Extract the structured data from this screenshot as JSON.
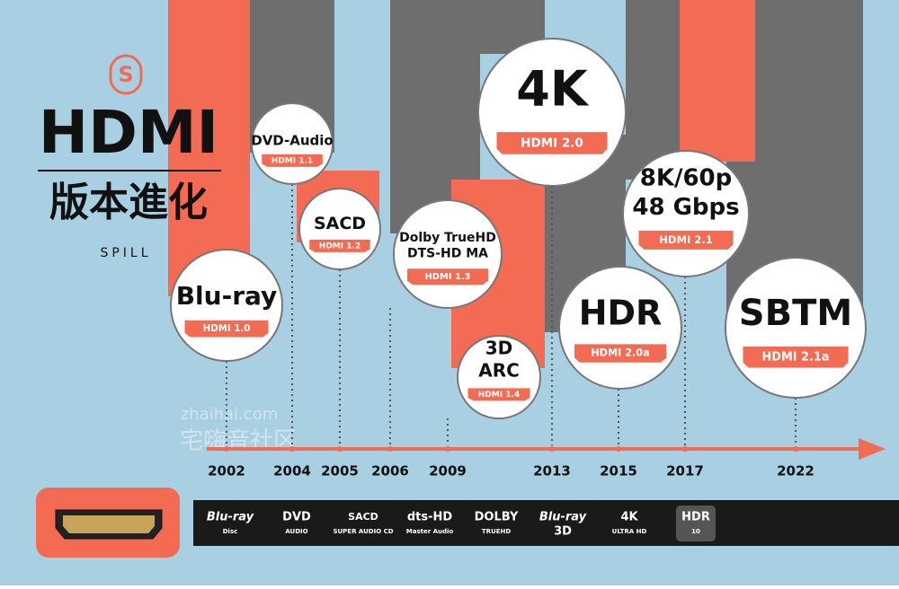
{
  "header": {
    "logo": "S",
    "title": "HDMI",
    "subtitle": "版本進化",
    "brand": "SPILL"
  },
  "watermark": {
    "site": "zhaihai.com",
    "name": "宅嗨音社区"
  },
  "milestones": [
    {
      "lines": [
        "Blu-ray"
      ],
      "version": "HDMI 1.0",
      "year": "2002"
    },
    {
      "lines": [
        "DVD-Audio"
      ],
      "version": "HDMI 1.1",
      "year": "2004"
    },
    {
      "lines": [
        "SACD"
      ],
      "version": "HDMI 1.2",
      "year": "2005"
    },
    {
      "lines": [
        "Dolby TrueHD",
        "DTS-HD MA"
      ],
      "version": "HDMI 1.3",
      "year": "2006"
    },
    {
      "lines": [
        "3D",
        "ARC"
      ],
      "version": "HDMI 1.4",
      "year": "2009"
    },
    {
      "lines": [
        "4K"
      ],
      "version": "HDMI 2.0",
      "year": "2013"
    },
    {
      "lines": [
        "HDR"
      ],
      "version": "HDMI 2.0a",
      "year": "2015"
    },
    {
      "lines": [
        "8K/60p",
        "48 Gbps"
      ],
      "version": "HDMI 2.1",
      "year": "2017"
    },
    {
      "lines": [
        "SBTM"
      ],
      "version": "HDMI 2.1a",
      "year": "2022"
    }
  ],
  "formats": [
    {
      "main": "Blu-ray",
      "sub": "Disc"
    },
    {
      "main": "DVD",
      "sub": "AUDIO"
    },
    {
      "main": "SACD",
      "sub": "SUPER AUDIO CD"
    },
    {
      "main": "dts-HD",
      "sub": "Master Audio"
    },
    {
      "main": "DOLBY",
      "sub": "TRUEHD"
    },
    {
      "main": "Blu-ray",
      "sub": "3D"
    },
    {
      "main": "4K",
      "sub": "ULTRA HD"
    },
    {
      "main": "HDR",
      "sub": "10"
    }
  ]
}
